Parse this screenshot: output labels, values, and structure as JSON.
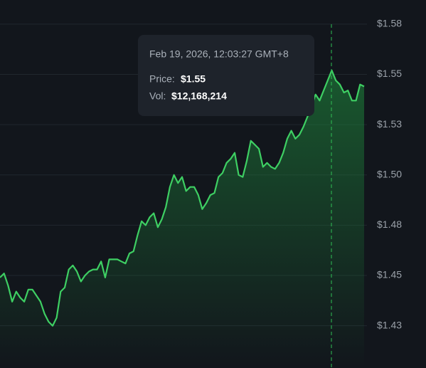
{
  "chart_data": {
    "type": "line",
    "color": "#3ecf63",
    "grid": true,
    "ylim": [
      1.404,
      1.587
    ],
    "yticks": [
      {
        "value": 1.575,
        "label": "$1.58"
      },
      {
        "value": 1.55,
        "label": "$1.55"
      },
      {
        "value": 1.525,
        "label": "$1.53"
      },
      {
        "value": 1.5,
        "label": "$1.50"
      },
      {
        "value": 1.475,
        "label": "$1.48"
      },
      {
        "value": 1.45,
        "label": "$1.45"
      },
      {
        "value": 1.425,
        "label": "$1.43"
      }
    ],
    "values": [
      1.449,
      1.451,
      1.445,
      1.437,
      1.442,
      1.439,
      1.437,
      1.443,
      1.443,
      1.44,
      1.437,
      1.431,
      1.427,
      1.425,
      1.429,
      1.442,
      1.444,
      1.453,
      1.455,
      1.452,
      1.447,
      1.45,
      1.452,
      1.453,
      1.453,
      1.457,
      1.449,
      1.458,
      1.458,
      1.458,
      1.457,
      1.456,
      1.461,
      1.462,
      1.47,
      1.477,
      1.475,
      1.479,
      1.481,
      1.474,
      1.478,
      1.484,
      1.494,
      1.5,
      1.496,
      1.499,
      1.492,
      1.494,
      1.494,
      1.49,
      1.483,
      1.486,
      1.49,
      1.491,
      1.499,
      1.501,
      1.506,
      1.508,
      1.511,
      1.5,
      1.499,
      1.507,
      1.517,
      1.515,
      1.513,
      1.504,
      1.506,
      1.504,
      1.503,
      1.506,
      1.511,
      1.518,
      1.522,
      1.518,
      1.52,
      1.524,
      1.529,
      1.534,
      1.54,
      1.537,
      1.542,
      1.547,
      1.552,
      1.547,
      1.545,
      1.541,
      1.542,
      1.537,
      1.537,
      1.545,
      1.544
    ]
  },
  "tooltip": {
    "date": "Feb 19, 2026, 12:03:27 GMT+8",
    "price_label": "Price:",
    "price": "$1.55",
    "volume_label": "Vol:",
    "volume": "$12,168,214"
  }
}
